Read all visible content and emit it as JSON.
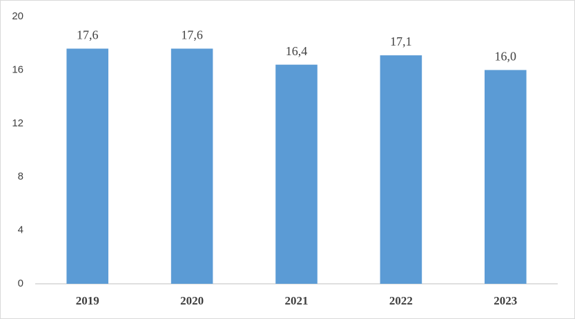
{
  "chart_data": {
    "type": "bar",
    "categories": [
      "2019",
      "2020",
      "2021",
      "2022",
      "2023"
    ],
    "values": [
      17.6,
      17.6,
      16.4,
      17.1,
      16.0
    ],
    "value_labels": [
      "17,6",
      "17,6",
      "16,4",
      "17,1",
      "16,0"
    ],
    "color": "#5b9bd5",
    "ylim": [
      0,
      20
    ],
    "yticks": [
      0,
      4,
      8,
      12,
      16,
      20
    ],
    "grid": false
  }
}
